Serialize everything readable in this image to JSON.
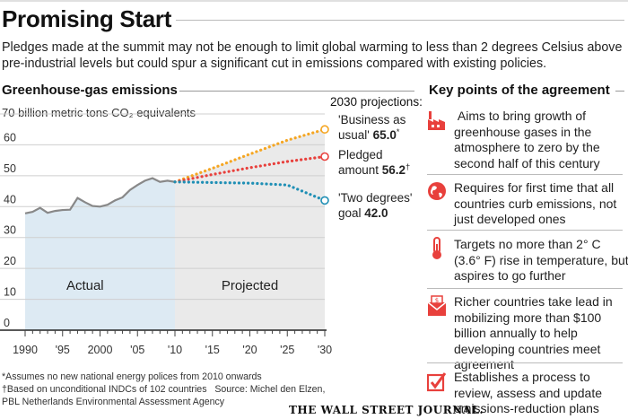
{
  "header": {
    "title": "Promising Start",
    "subtitle": "Pledges made at the summit may not be enough to limit global warming to less than 2 degrees Celsius above pre-industrial levels but could spur a significant cut in emissions compared with existing policies."
  },
  "left_section": {
    "heading": "Greenhouse-gas emissions",
    "unit_label": "70 billion metric tons CO₂ equivalents",
    "projections_heading": "2030 projections:"
  },
  "chart_data": {
    "type": "line",
    "title": "Greenhouse-gas emissions",
    "ylabel": "billion metric tons CO2 equivalents",
    "xlim": [
      1990,
      2030
    ],
    "ylim": [
      0,
      70
    ],
    "y_ticks": [
      0,
      10,
      20,
      30,
      40,
      50,
      60,
      70
    ],
    "y_tick_labels": [
      "0",
      "10",
      "20",
      "30",
      "40",
      "50",
      "60",
      "70"
    ],
    "x_ticks": [
      1990,
      1995,
      2000,
      2005,
      2010,
      2015,
      2020,
      2025,
      2030
    ],
    "x_tick_labels": [
      "1990",
      "'95",
      "2000",
      "'05",
      "'10",
      "'15",
      "'20",
      "'25",
      "'30"
    ],
    "region_labels": {
      "actual": "Actual",
      "projected": "Projected"
    },
    "series": [
      {
        "name": "Actual",
        "color": "#888888",
        "x": [
          1990,
          1991,
          1992,
          1993,
          1994,
          1995,
          1996,
          1997,
          1998,
          1999,
          2000,
          2001,
          2002,
          2003,
          2004,
          2005,
          2006,
          2007,
          2008,
          2009,
          2010
        ],
        "values": [
          37.8,
          38.3,
          39.6,
          38.0,
          38.6,
          38.9,
          39.0,
          42.8,
          41.4,
          40.2,
          40.0,
          40.6,
          42.0,
          43.0,
          45.4,
          47.0,
          48.4,
          49.2,
          48.0,
          48.4,
          48.0
        ]
      },
      {
        "name": "'Business as usual'",
        "label": "'Business as usual'",
        "end_value": "65.0",
        "marker": "*",
        "color": "#f5a623",
        "x": [
          2010,
          2015,
          2020,
          2025,
          2030
        ],
        "values": [
          48.0,
          52.4,
          57.0,
          61.5,
          65.0
        ]
      },
      {
        "name": "Pledged amount",
        "label": "Pledged amount",
        "end_value": "56.2",
        "marker": "†",
        "color": "#e8403c",
        "x": [
          2010,
          2015,
          2020,
          2025,
          2030
        ],
        "values": [
          48.0,
          50.4,
          52.6,
          54.6,
          56.2
        ]
      },
      {
        "name": "'Two degrees' goal",
        "label": "'Two degrees' goal",
        "end_value": "42.0",
        "marker": "",
        "color": "#1f8fb5",
        "x": [
          2010,
          2015,
          2020,
          2025,
          2030
        ],
        "values": [
          48.0,
          47.8,
          47.6,
          47.0,
          42.0
        ]
      }
    ],
    "annotations": [
      {
        "lines": [
          "'Business as",
          "usual'"
        ],
        "value": "65.0",
        "marker": "*"
      },
      {
        "lines": [
          "Pledged",
          "amount"
        ],
        "value": "56.2",
        "marker": "†"
      },
      {
        "lines": [
          "'Two degrees'",
          "goal"
        ],
        "value": "42.0",
        "marker": ""
      }
    ]
  },
  "key_points": {
    "heading": "Key points of the agreement",
    "accent_color": "#e8403c",
    "items": [
      {
        "icon": "factory-icon",
        "text": " Aims to bring growth of greenhouse gases in the atmosphere to zero by the second half of this century"
      },
      {
        "icon": "globe-icon",
        "text": "Requires for first time that all countries curb emissions, not just developed ones"
      },
      {
        "icon": "thermometer-icon",
        "text": "Targets no more than 2° C (3.6° F) rise in temperature, but aspires to go further"
      },
      {
        "icon": "money-envelope-icon",
        "text": "Richer countries take lead in mobilizing more than $100 billion annually to help developing countries meet agreement"
      },
      {
        "icon": "checkbox-icon",
        "text": "Establishes a process to review, assess and update emissions-reduction plans"
      }
    ]
  },
  "footnotes": {
    "line1": "*Assumes no new national energy polices from 2010 onwards",
    "line2": "†Based on unconditional INDCs of 102 countries   Source: Michel den Elzen,",
    "line3": "PBL Netherlands Environmental Assessment Agency"
  },
  "branding": {
    "publisher": "THE WALL STREET JOURNAL."
  }
}
